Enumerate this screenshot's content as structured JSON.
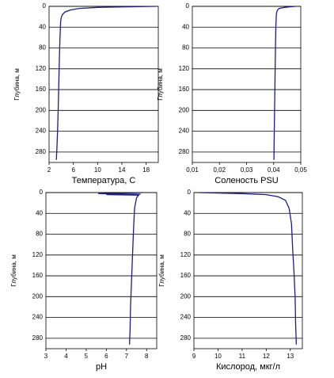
{
  "chart_data": [
    {
      "type": "line",
      "xlabel": "Температура, С",
      "ylabel": "Глубина, м",
      "color": "#1c1c8c",
      "grid": true,
      "y_inverted": true,
      "x": [
        19.6,
        15,
        10,
        7,
        5.5,
        4.6,
        4.2,
        4.0,
        3.9,
        3.8,
        3.7,
        3.6,
        3.5,
        3.4,
        3.3,
        3.2
      ],
      "y": [
        0,
        1,
        2,
        4,
        7,
        11,
        16,
        22,
        30,
        60,
        100,
        150,
        200,
        240,
        270,
        295
      ],
      "xlim": [
        2,
        20
      ],
      "xticks": [
        2,
        6,
        10,
        14,
        18
      ],
      "ylim": [
        0,
        300
      ],
      "yticks": [
        0,
        40,
        80,
        120,
        160,
        200,
        240,
        280
      ]
    },
    {
      "type": "line",
      "xlabel": "Соленость PSU",
      "ylabel": "Глубина, м",
      "color": "#1c1c8c",
      "grid": true,
      "y_inverted": true,
      "x": [
        0.048,
        0.046,
        0.044,
        0.042,
        0.0413,
        0.041,
        0.0408,
        0.0406,
        0.0404,
        0.0402,
        0.0401
      ],
      "y": [
        0,
        1,
        2,
        4,
        8,
        15,
        40,
        100,
        180,
        250,
        295
      ],
      "xlim": [
        0.01,
        0.05
      ],
      "xticks": [
        {
          "value": 0.01,
          "label": "0,01"
        },
        {
          "value": 0.02,
          "label": "0,02"
        },
        {
          "value": 0.03,
          "label": "0,03"
        },
        {
          "value": 0.04,
          "label": "0,04"
        },
        {
          "value": 0.05,
          "label": "0,05"
        }
      ],
      "ylim": [
        0,
        300
      ],
      "yticks": [
        0,
        40,
        80,
        120,
        160,
        200,
        240,
        280
      ]
    },
    {
      "type": "line",
      "xlabel": "pH",
      "ylabel": "Глубина, м",
      "color": "#1c1c8c",
      "grid": true,
      "y_inverted": true,
      "x": [
        7.8,
        5.6,
        7.7,
        6.0,
        7.6,
        7.5,
        7.4,
        7.35,
        7.3,
        7.25,
        7.2,
        7.18,
        7.15
      ],
      "y": [
        0,
        2,
        3,
        4,
        5,
        10,
        30,
        70,
        120,
        170,
        220,
        260,
        292
      ],
      "xlim": [
        3,
        8.5
      ],
      "xticks": [
        3,
        4,
        5,
        6,
        7,
        8
      ],
      "ylim": [
        0,
        300
      ],
      "yticks": [
        0,
        40,
        80,
        120,
        160,
        200,
        240,
        280
      ]
    },
    {
      "type": "line",
      "xlabel": "Кислород, мкг/л",
      "ylabel": "Глубина, м",
      "color": "#1c1c8c",
      "grid": true,
      "y_inverted": true,
      "x": [
        9.2,
        10,
        11,
        12,
        12.5,
        12.8,
        12.95,
        13.05,
        13.1,
        13.15,
        13.2,
        13.22,
        13.25
      ],
      "y": [
        0,
        1,
        2,
        4,
        8,
        15,
        30,
        60,
        110,
        150,
        200,
        250,
        292
      ],
      "xlim": [
        9,
        13.5
      ],
      "xticks": [
        9,
        10,
        11,
        12,
        13
      ],
      "ylim": [
        0,
        300
      ],
      "yticks": [
        0,
        40,
        80,
        120,
        160,
        200,
        240,
        280
      ]
    }
  ]
}
